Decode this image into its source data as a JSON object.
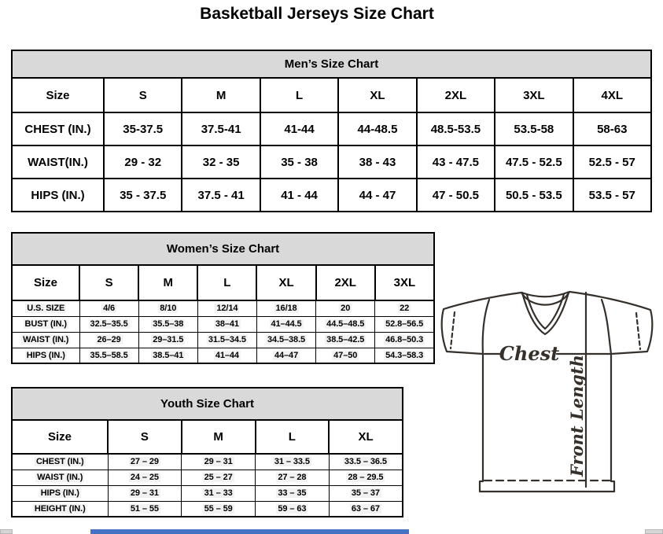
{
  "page_title": "Basketball Jerseys Size Chart",
  "tables": [
    {
      "title": "Men’s Size Chart",
      "header_row": [
        "Size",
        "S",
        "M",
        "L",
        "XL",
        "2XL",
        "3XL",
        "4XL"
      ],
      "rows": [
        {
          "label": "CHEST (IN.)",
          "values": [
            "35-37.5",
            "37.5-41",
            "41-44",
            "44-48.5",
            "48.5-53.5",
            "53.5-58",
            "58-63"
          ]
        },
        {
          "label": "WAIST(IN.)",
          "values": [
            "29 - 32",
            "32 - 35",
            "35 - 38",
            "38 - 43",
            "43 - 47.5",
            "47.5 - 52.5",
            "52.5 - 57"
          ]
        },
        {
          "label": "HIPS (IN.)",
          "values": [
            "35 - 37.5",
            "37.5 - 41",
            "41 - 44",
            "44 - 47",
            "47 - 50.5",
            "50.5 - 53.5",
            "53.5 - 57"
          ]
        }
      ]
    },
    {
      "title": "Women’s Size Chart",
      "header_row": [
        "Size",
        "S",
        "M",
        "L",
        "XL",
        "2XL",
        "3XL"
      ],
      "rows": [
        {
          "label": "U.S. SIZE",
          "values": [
            "4/6",
            "8/10",
            "12/14",
            "16/18",
            "20",
            "22"
          ]
        },
        {
          "label": "BUST (IN.)",
          "values": [
            "32.5–35.5",
            "35.5–38",
            "38–41",
            "41–44.5",
            "44.5–48.5",
            "52.8–56.5"
          ]
        },
        {
          "label": "WAIST (IN.)",
          "values": [
            "26–29",
            "29–31.5",
            "31.5–34.5",
            "34.5–38.5",
            "38.5–42.5",
            "46.8–50.3"
          ]
        },
        {
          "label": "HIPS (IN.)",
          "values": [
            "35.5–58.5",
            "38.5–41",
            "41–44",
            "44–47",
            "47–50",
            "54.3–58.3"
          ]
        }
      ]
    },
    {
      "title": "Youth Size Chart",
      "header_row": [
        "Size",
        "S",
        "M",
        "L",
        "XL"
      ],
      "rows": [
        {
          "label": "CHEST (IN.)",
          "values": [
            "27 – 29",
            "29 – 31",
            "31 – 33.5",
            "33.5 – 36.5"
          ]
        },
        {
          "label": "WAIST (IN.)",
          "values": [
            "24 – 25",
            "25 – 27",
            "27 – 28",
            "28 – 29.5"
          ]
        },
        {
          "label": "HIPS (IN.)",
          "values": [
            "29 – 31",
            "31 – 33",
            "33 – 35",
            "35 – 37"
          ]
        },
        {
          "label": "HEIGHT (IN.)",
          "values": [
            "51 – 55",
            "55 – 59",
            "59 – 63",
            "63 – 67"
          ]
        }
      ]
    }
  ],
  "diagram": {
    "chest_label": "Chest",
    "front_length_label": "Front Length"
  },
  "colors": {
    "section_header_bg": "#d9d9d9",
    "table_border": "#000000",
    "diagram_stroke": "#35302b",
    "scrollbar_thumb": "#4472c4",
    "scrollbar_button": "#d6d6d6"
  }
}
